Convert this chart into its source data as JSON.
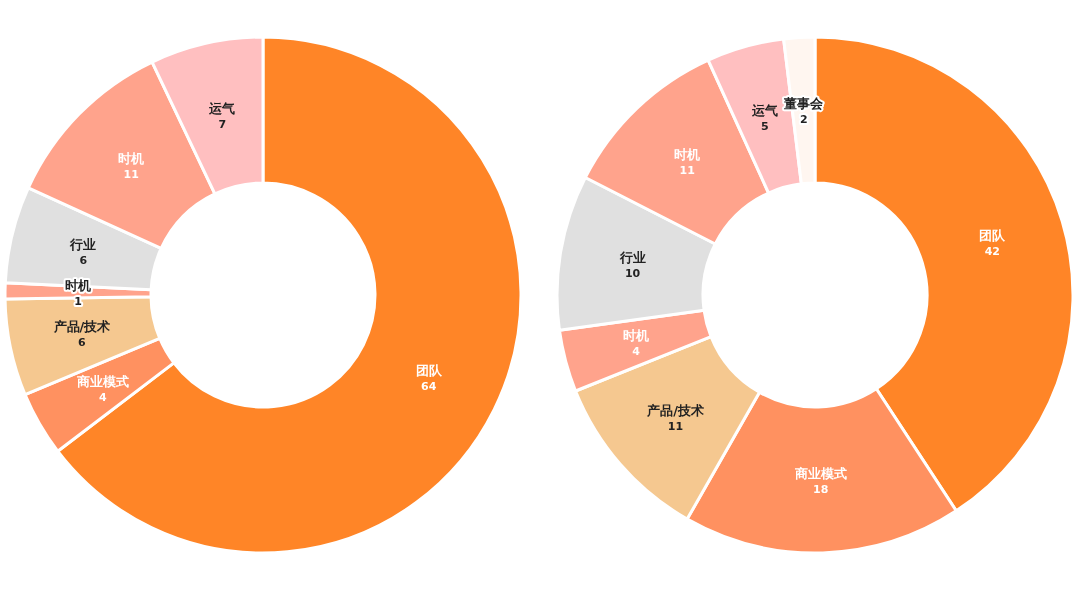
{
  "chart_data": [
    {
      "type": "donut",
      "categories": [
        "团队",
        "商业模式",
        "产品/技术",
        "时机",
        "行业",
        "时机",
        "运气"
      ],
      "values": [
        64,
        4,
        6,
        1,
        6,
        11,
        7
      ],
      "colors": [
        "#ff8527",
        "#ff9160",
        "#f5c890",
        "#ffa38c",
        "#e0e0e0",
        "#ffa38c",
        "#ffbfc0"
      ],
      "data_labels": true
    },
    {
      "type": "donut",
      "categories": [
        "团队",
        "商业模式",
        "产品/技术",
        "时机",
        "行业",
        "时机",
        "运气",
        "董事会"
      ],
      "values": [
        42,
        18,
        11,
        4,
        10,
        11,
        5,
        2
      ],
      "colors": [
        "#ff8527",
        "#ff9160",
        "#f5c890",
        "#ffa38c",
        "#e0e0e0",
        "#ffa38c",
        "#ffbfc0",
        "#fff6f0"
      ],
      "data_labels": true
    }
  ]
}
